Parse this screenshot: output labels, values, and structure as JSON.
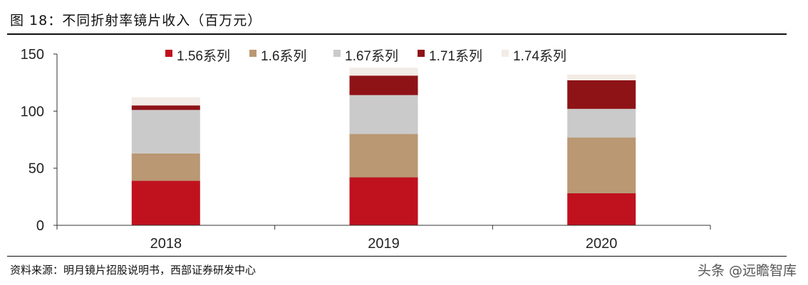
{
  "figure": {
    "title": "图 18：不同折射率镜片收入（百万元）",
    "source": "资料来源：明月镜片招股说明书，西部证券研发中心",
    "watermark": "头条 @远瞻智库"
  },
  "chart_data": {
    "type": "bar",
    "stacked": true,
    "categories": [
      "2018",
      "2019",
      "2020"
    ],
    "series": [
      {
        "name": "1.56系列",
        "color": "#c0111f",
        "values": [
          39,
          42,
          28
        ]
      },
      {
        "name": "1.6系列",
        "color": "#b99873",
        "values": [
          24,
          38,
          49
        ]
      },
      {
        "name": "1.67系列",
        "color": "#cacaca",
        "values": [
          38,
          34,
          25
        ]
      },
      {
        "name": "1.71系列",
        "color": "#8e1317",
        "values": [
          4,
          17,
          25
        ]
      },
      {
        "name": "1.74系列",
        "color": "#f3ebe5",
        "values": [
          7,
          7,
          5
        ]
      }
    ],
    "yticks": [
      0,
      50,
      100,
      150
    ],
    "ylim": [
      0,
      150
    ],
    "legend_position": "top",
    "grid": false
  }
}
